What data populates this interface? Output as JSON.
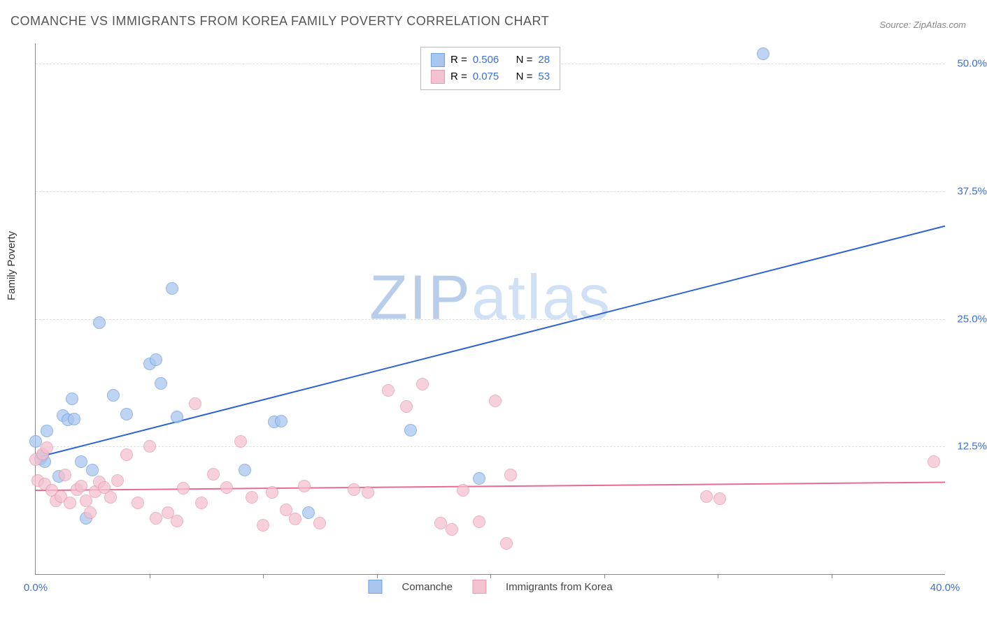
{
  "title": "COMANCHE VS IMMIGRANTS FROM KOREA FAMILY POVERTY CORRELATION CHART",
  "source": "Source: ZipAtlas.com",
  "ylabel": "Family Poverty",
  "watermark": {
    "zip": "ZIP",
    "atlas": "atlas"
  },
  "chart": {
    "type": "scatter",
    "xlim": [
      0,
      40
    ],
    "ylim": [
      0,
      52
    ],
    "x_ticks_labeled": [
      {
        "v": 0,
        "label": "0.0%"
      },
      {
        "v": 40,
        "label": "40.0%"
      }
    ],
    "x_minor_ticks": [
      5,
      10,
      15,
      20,
      25,
      30,
      35
    ],
    "y_ticks": [
      {
        "v": 12.5,
        "label": "12.5%"
      },
      {
        "v": 25.0,
        "label": "25.0%"
      },
      {
        "v": 37.5,
        "label": "37.5%"
      },
      {
        "v": 50.0,
        "label": "50.0%"
      }
    ],
    "grid_color": "#dddddd",
    "background_color": "#ffffff",
    "marker_radius": 9,
    "marker_stroke_width": 1.2,
    "marker_fill_opacity": 0.35,
    "line_width": 2,
    "series": [
      {
        "key": "comanche",
        "label": "Comanche",
        "color_stroke": "#6fa0e0",
        "color_fill": "#a9c6ee",
        "line_color": "#2e63d6",
        "R": "0.506",
        "N": "28",
        "trend": {
          "x1": 0,
          "y1": 11.4,
          "x2": 40,
          "y2": 34.1
        },
        "points": [
          [
            0.0,
            13.0
          ],
          [
            0.2,
            11.3
          ],
          [
            0.3,
            11.6
          ],
          [
            0.4,
            11.0
          ],
          [
            0.5,
            14.0
          ],
          [
            1.0,
            9.6
          ],
          [
            1.2,
            15.5
          ],
          [
            1.4,
            15.1
          ],
          [
            1.6,
            17.2
          ],
          [
            1.7,
            15.2
          ],
          [
            2.0,
            11.0
          ],
          [
            2.2,
            5.5
          ],
          [
            2.5,
            10.2
          ],
          [
            2.8,
            24.6
          ],
          [
            3.4,
            17.5
          ],
          [
            4.0,
            15.7
          ],
          [
            5.0,
            20.6
          ],
          [
            5.3,
            21.0
          ],
          [
            5.5,
            18.7
          ],
          [
            6.0,
            28.0
          ],
          [
            6.2,
            15.4
          ],
          [
            9.2,
            10.2
          ],
          [
            10.5,
            14.9
          ],
          [
            10.8,
            15.0
          ],
          [
            12.0,
            6.0
          ],
          [
            16.5,
            14.1
          ],
          [
            19.5,
            9.4
          ],
          [
            32.0,
            51.0
          ]
        ]
      },
      {
        "key": "korea",
        "label": "Immigrants from Korea",
        "color_stroke": "#e89ab0",
        "color_fill": "#f3c2d0",
        "line_color": "#e86a8f",
        "R": "0.075",
        "N": "53",
        "trend": {
          "x1": 0,
          "y1": 8.2,
          "x2": 40,
          "y2": 9.0
        },
        "points": [
          [
            0.0,
            11.2
          ],
          [
            0.1,
            9.2
          ],
          [
            0.3,
            11.8
          ],
          [
            0.4,
            8.8
          ],
          [
            0.5,
            12.4
          ],
          [
            0.7,
            8.2
          ],
          [
            0.9,
            7.2
          ],
          [
            1.1,
            7.6
          ],
          [
            1.3,
            9.7
          ],
          [
            1.5,
            7.0
          ],
          [
            1.8,
            8.3
          ],
          [
            2.0,
            8.6
          ],
          [
            2.2,
            7.2
          ],
          [
            2.4,
            6.0
          ],
          [
            2.6,
            8.1
          ],
          [
            2.8,
            9.0
          ],
          [
            3.0,
            8.5
          ],
          [
            3.3,
            7.5
          ],
          [
            3.6,
            9.2
          ],
          [
            4.0,
            11.7
          ],
          [
            4.5,
            7.0
          ],
          [
            5.0,
            12.5
          ],
          [
            5.3,
            5.5
          ],
          [
            5.8,
            6.0
          ],
          [
            6.2,
            5.2
          ],
          [
            6.5,
            8.4
          ],
          [
            7.0,
            16.7
          ],
          [
            7.3,
            7.0
          ],
          [
            7.8,
            9.8
          ],
          [
            8.4,
            8.5
          ],
          [
            9.0,
            13.0
          ],
          [
            9.5,
            7.5
          ],
          [
            10.0,
            4.8
          ],
          [
            10.4,
            8.0
          ],
          [
            11.0,
            6.3
          ],
          [
            11.4,
            5.4
          ],
          [
            11.8,
            8.6
          ],
          [
            14.0,
            8.3
          ],
          [
            14.6,
            8.0
          ],
          [
            15.5,
            18.0
          ],
          [
            16.3,
            16.4
          ],
          [
            17.0,
            18.6
          ],
          [
            17.8,
            5.0
          ],
          [
            18.3,
            4.4
          ],
          [
            18.8,
            8.2
          ],
          [
            19.5,
            5.1
          ],
          [
            20.2,
            17.0
          ],
          [
            20.7,
            3.0
          ],
          [
            20.9,
            9.7
          ],
          [
            29.5,
            7.6
          ],
          [
            30.1,
            7.4
          ],
          [
            39.5,
            11.0
          ],
          [
            12.5,
            5.0
          ]
        ]
      }
    ]
  },
  "legend_top_label_R": "R =",
  "legend_top_label_N": "N =",
  "legend_value_color": "#3b6fd6"
}
